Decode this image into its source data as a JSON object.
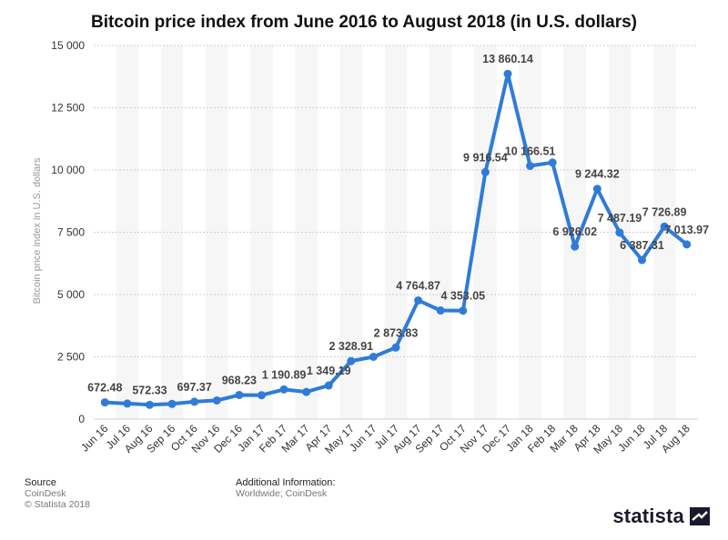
{
  "chart_data": {
    "type": "line",
    "title": "Bitcoin price index from June 2016 to August 2018 (in U.S. dollars)",
    "ylabel": "Bitcoin price index in U.S. dollars",
    "xlabel": "",
    "ylim": [
      0,
      15000
    ],
    "yticks": [
      0,
      2500,
      5000,
      7500,
      10000,
      12500,
      15000
    ],
    "ytick_labels": [
      "0",
      "2 500",
      "5 000",
      "7 500",
      "10 000",
      "12 500",
      "15 000"
    ],
    "categories": [
      "Jun 16",
      "Jul 16",
      "Aug 16",
      "Sep 16",
      "Oct 16",
      "Nov 16",
      "Dec 16",
      "Jan 17",
      "Feb 17",
      "Mar 17",
      "Apr 17",
      "May 17",
      "Jun 17",
      "Jul 17",
      "Aug 17",
      "Sep 17",
      "Oct 17",
      "Nov 17",
      "Dec 17",
      "Jan 18",
      "Feb 18",
      "Mar 18",
      "Apr 18",
      "May 18",
      "Jun 18",
      "Jul 18",
      "Aug 18"
    ],
    "values": [
      672.48,
      624,
      572.33,
      610,
      697.37,
      750,
      968.23,
      960,
      1190.89,
      1090,
      1349.19,
      2328.91,
      2500,
      2873.83,
      4764.87,
      4360,
      4353.05,
      9916.54,
      13860.14,
      10166.51,
      10300,
      6926.02,
      9244.32,
      7487.19,
      6387.31,
      7726.89,
      7013.97
    ],
    "data_labels": [
      {
        "index": 0,
        "text": "672.48"
      },
      {
        "index": 2,
        "text": "572.33"
      },
      {
        "index": 4,
        "text": "697.37"
      },
      {
        "index": 6,
        "text": "968.23"
      },
      {
        "index": 8,
        "text": "1 190.89"
      },
      {
        "index": 10,
        "text": "1 349.19"
      },
      {
        "index": 11,
        "text": "2 328.91"
      },
      {
        "index": 13,
        "text": "2 873.83"
      },
      {
        "index": 14,
        "text": "4 764.87"
      },
      {
        "index": 16,
        "text": "4 353.05"
      },
      {
        "index": 17,
        "text": "9 916.54"
      },
      {
        "index": 18,
        "text": "13 860.14"
      },
      {
        "index": 19,
        "text": "10 166.51"
      },
      {
        "index": 21,
        "text": "6 926.02"
      },
      {
        "index": 22,
        "text": "9 244.32"
      },
      {
        "index": 23,
        "text": "7 487.19"
      },
      {
        "index": 24,
        "text": "6 387.31"
      },
      {
        "index": 25,
        "text": "7 726.89"
      },
      {
        "index": 26,
        "text": "7 013.97"
      }
    ],
    "line_color": "#2f7bd9",
    "grid": true,
    "legend": "none"
  },
  "footer": {
    "source_heading": "Source",
    "source_value": "CoinDesk",
    "copyright": "© Statista 2018",
    "additional_heading": "Additional Information:",
    "additional_value": "Worldwide; CoinDesk"
  },
  "brand": {
    "name": "statista",
    "icon": "statista-logo-icon"
  }
}
